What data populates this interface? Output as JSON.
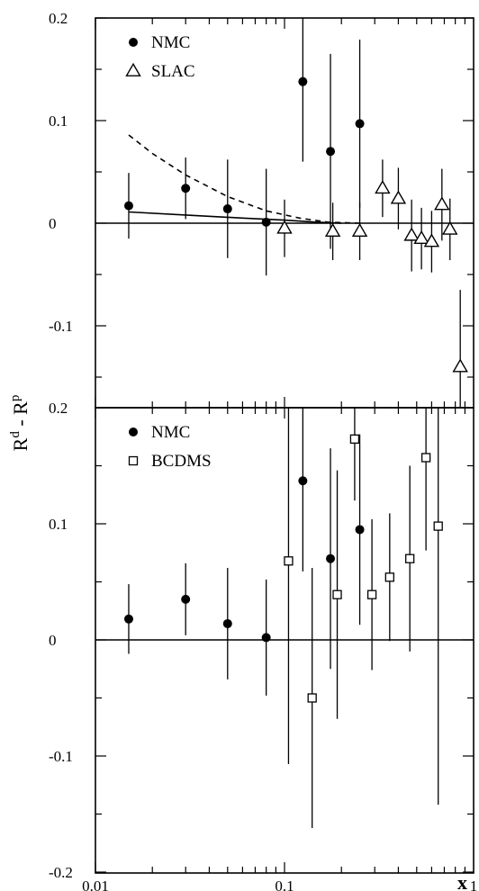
{
  "chart_data": [
    {
      "type": "scatter",
      "panel": "top",
      "xscale": "log",
      "xlim": [
        0.01,
        1
      ],
      "ylim": [
        -0.2,
        0.2
      ],
      "yticks": [
        "0.2",
        "0.1",
        "0",
        "-0.1"
      ],
      "legend_position": "top-left",
      "series": [
        {
          "name": "NMC",
          "marker": "filled-circle",
          "points": [
            {
              "x": 0.015,
              "y": 0.017,
              "err": 0.032
            },
            {
              "x": 0.03,
              "y": 0.034,
              "err": 0.03
            },
            {
              "x": 0.05,
              "y": 0.014,
              "err": 0.048
            },
            {
              "x": 0.08,
              "y": 0.001,
              "err": 0.052
            },
            {
              "x": 0.125,
              "y": 0.138,
              "err": 0.078
            },
            {
              "x": 0.175,
              "y": 0.07,
              "err": 0.095
            },
            {
              "x": 0.25,
              "y": 0.097,
              "err": 0.082
            }
          ]
        },
        {
          "name": "SLAC",
          "marker": "open-triangle",
          "points": [
            {
              "x": 0.1,
              "y": -0.005,
              "err": 0.028
            },
            {
              "x": 0.18,
              "y": -0.008,
              "err": 0.028
            },
            {
              "x": 0.25,
              "y": -0.008,
              "err": 0.028
            },
            {
              "x": 0.33,
              "y": 0.034,
              "err": 0.028
            },
            {
              "x": 0.4,
              "y": 0.024,
              "err": 0.03
            },
            {
              "x": 0.47,
              "y": -0.012,
              "err": 0.035
            },
            {
              "x": 0.53,
              "y": -0.015,
              "err": 0.03
            },
            {
              "x": 0.6,
              "y": -0.018,
              "err": 0.03
            },
            {
              "x": 0.68,
              "y": 0.018,
              "err": 0.035
            },
            {
              "x": 0.75,
              "y": -0.006,
              "err": 0.03
            },
            {
              "x": 0.85,
              "y": -0.14,
              "err": 0.075
            }
          ]
        }
      ],
      "curves": [
        {
          "style": "dashed",
          "x": [
            0.015,
            0.02,
            0.03,
            0.05,
            0.08,
            0.12,
            0.17,
            0.25
          ],
          "y": [
            0.086,
            0.068,
            0.047,
            0.026,
            0.012,
            0.005,
            0.001,
            0.0
          ]
        },
        {
          "style": "solid",
          "x": [
            0.015,
            0.03,
            0.06,
            0.1,
            0.15,
            0.2
          ],
          "y": [
            0.011,
            0.008,
            0.005,
            0.003,
            0.001,
            0.0
          ]
        }
      ]
    },
    {
      "type": "scatter",
      "panel": "bottom",
      "xscale": "log",
      "xlim": [
        0.01,
        1
      ],
      "ylim": [
        -0.2,
        0.2
      ],
      "yticks": [
        "0.2",
        "0.1",
        "0",
        "-0.1",
        "-0.2"
      ],
      "xticks": [
        "0.01",
        "0.1",
        "1"
      ],
      "xlabel": "x",
      "legend_position": "top-left",
      "series": [
        {
          "name": "NMC",
          "marker": "filled-circle",
          "points": [
            {
              "x": 0.015,
              "y": 0.018,
              "err": 0.03
            },
            {
              "x": 0.03,
              "y": 0.035,
              "err": 0.031
            },
            {
              "x": 0.05,
              "y": 0.014,
              "err": 0.048
            },
            {
              "x": 0.08,
              "y": 0.002,
              "err": 0.05
            },
            {
              "x": 0.125,
              "y": 0.137,
              "err": 0.078
            },
            {
              "x": 0.175,
              "y": 0.07,
              "err": 0.095
            },
            {
              "x": 0.25,
              "y": 0.095,
              "err": 0.082
            }
          ]
        },
        {
          "name": "BCDMS",
          "marker": "open-square",
          "points": [
            {
              "x": 0.105,
              "y": 0.068,
              "err": 0.175
            },
            {
              "x": 0.14,
              "y": -0.05,
              "err": 0.112
            },
            {
              "x": 0.19,
              "y": 0.039,
              "err": 0.107
            },
            {
              "x": 0.235,
              "y": 0.173,
              "err": 0.053
            },
            {
              "x": 0.29,
              "y": 0.039,
              "err": 0.065
            },
            {
              "x": 0.36,
              "y": 0.054,
              "err": 0.055
            },
            {
              "x": 0.46,
              "y": 0.07,
              "err": 0.08
            },
            {
              "x": 0.56,
              "y": 0.157,
              "err": 0.08
            },
            {
              "x": 0.65,
              "y": 0.098,
              "err": 0.24
            }
          ]
        }
      ]
    }
  ],
  "ylabel_base_d": "R",
  "ylabel_sup_d": "d",
  "ylabel_sep": " - ",
  "ylabel_base_p": "R",
  "ylabel_sup_p": "p",
  "xlabel": "x"
}
